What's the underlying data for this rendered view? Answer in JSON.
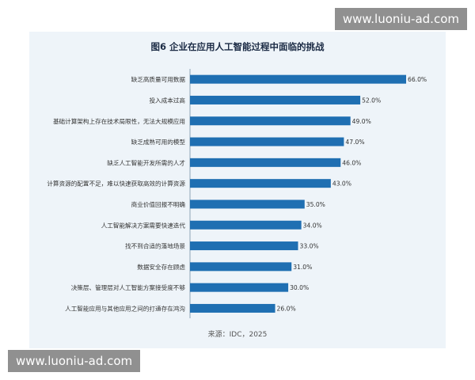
{
  "watermarks": {
    "top": "www.luoniu-ad.com",
    "bottom": "www.luoniu-ad.com"
  },
  "chart_data": {
    "type": "bar",
    "orientation": "horizontal",
    "title": "图6 企业在应用人工智能过程中面临的挑战",
    "source": "来源：IDC，2025",
    "categories": [
      "缺乏高质量可用数据",
      "投入成本过高",
      "基础计算架构上存在技术局限性，无法大规模应用",
      "缺乏成熟可用的模型",
      "缺乏人工智能开发所需的人才",
      "计算资源的配置不足，难以快速获取高效的计算资源",
      "商业价值回报不明确",
      "人工智能解决方案需要快速迭代",
      "找不到合适的落地场景",
      "数据安全存在顾虑",
      "决策层、管理层对人工智能方案接受度不够",
      "人工智能应用与其他应用之间的打通存在鸿沟"
    ],
    "values": [
      66.0,
      52.0,
      49.0,
      47.0,
      46.0,
      43.0,
      35.0,
      34.0,
      33.0,
      31.0,
      30.0,
      26.0
    ],
    "value_labels": [
      "66.0%",
      "52.0%",
      "49.0%",
      "47.0%",
      "46.0%",
      "43.0%",
      "35.0%",
      "34.0%",
      "33.0%",
      "31.0%",
      "30.0%",
      "26.0%"
    ],
    "xlim": [
      0,
      66
    ],
    "grid": false,
    "bar_color": "#1f6fb2"
  }
}
